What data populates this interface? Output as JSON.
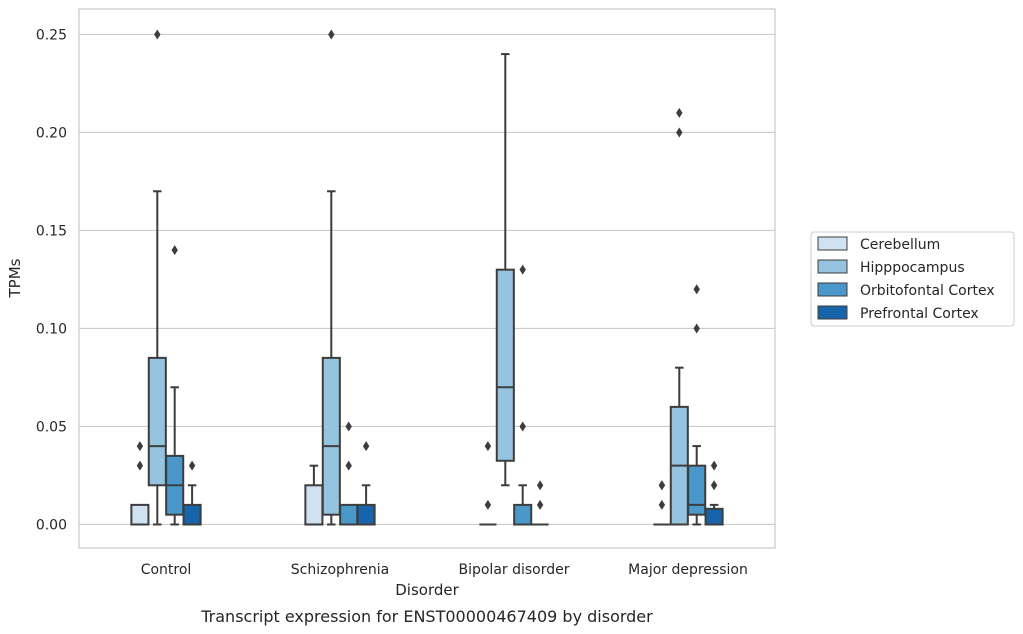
{
  "chart_data": {
    "type": "box",
    "title": "",
    "caption": "Transcript expression for ENST00000467409 by disorder",
    "xlabel": "Disorder",
    "ylabel": "TPMs",
    "ylim": [
      -0.012,
      0.263
    ],
    "yticks": [
      "0.00",
      "0.05",
      "0.10",
      "0.15",
      "0.20",
      "0.25"
    ],
    "ytick_values": [
      0,
      0.05,
      0.1,
      0.15,
      0.2,
      0.25
    ],
    "grid": true,
    "legend_position": "right",
    "categories": [
      "Control",
      "Schizophrenia",
      "Bipolar disorder",
      "Major depression"
    ],
    "series": [
      {
        "name": "Cerebellum",
        "color": "#d0e1f2",
        "boxes": [
          {
            "min": 0,
            "q1": 0,
            "median": 0,
            "q3": 0.01,
            "max": 0.01,
            "outliers": [
              0.04,
              0.03
            ]
          },
          {
            "min": 0,
            "q1": 0,
            "median": 0,
            "q3": 0.02,
            "max": 0.03,
            "outliers": []
          },
          {
            "min": 0,
            "q1": 0,
            "median": 0,
            "q3": 0,
            "max": 0,
            "outliers": [
              0.04,
              0.01
            ]
          },
          {
            "min": 0,
            "q1": 0,
            "median": 0,
            "q3": 0,
            "max": 0,
            "outliers": [
              0.02,
              0.02,
              0.01
            ]
          }
        ]
      },
      {
        "name": "Hipppocampus",
        "color": "#94c4df",
        "boxes": [
          {
            "min": 0,
            "q1": 0.02,
            "median": 0.04,
            "q3": 0.085,
            "max": 0.17,
            "outliers": [
              0.25
            ]
          },
          {
            "min": 0,
            "q1": 0.005,
            "median": 0.04,
            "q3": 0.085,
            "max": 0.17,
            "outliers": [
              0.25
            ]
          },
          {
            "min": 0.02,
            "q1": 0.0325,
            "median": 0.07,
            "q3": 0.13,
            "max": 0.24,
            "outliers": []
          },
          {
            "min": 0,
            "q1": 0,
            "median": 0.03,
            "q3": 0.06,
            "max": 0.08,
            "outliers": [
              0.21,
              0.2
            ]
          }
        ]
      },
      {
        "name": "Orbitofontal Cortex",
        "color": "#4a98c9",
        "boxes": [
          {
            "min": 0,
            "q1": 0.005,
            "median": 0.02,
            "q3": 0.035,
            "max": 0.07,
            "outliers": [
              0.14
            ]
          },
          {
            "min": 0,
            "q1": 0,
            "median": 0,
            "q3": 0.01,
            "max": 0.01,
            "outliers": [
              0.05,
              0.03
            ]
          },
          {
            "min": 0,
            "q1": 0,
            "median": 0,
            "q3": 0.01,
            "max": 0.02,
            "outliers": [
              0.13,
              0.05
            ]
          },
          {
            "min": 0,
            "q1": 0.005,
            "median": 0.01,
            "q3": 0.03,
            "max": 0.04,
            "outliers": [
              0.12,
              0.1
            ]
          }
        ]
      },
      {
        "name": "Prefrontal Cortex",
        "color": "#1764ab",
        "boxes": [
          {
            "min": 0,
            "q1": 0,
            "median": 0,
            "q3": 0.01,
            "max": 0.02,
            "outliers": [
              0.03
            ]
          },
          {
            "min": 0,
            "q1": 0,
            "median": 0,
            "q3": 0.01,
            "max": 0.02,
            "outliers": [
              0.04
            ]
          },
          {
            "min": 0,
            "q1": 0,
            "median": 0,
            "q3": 0,
            "max": 0,
            "outliers": [
              0.02,
              0.01
            ]
          },
          {
            "min": 0,
            "q1": 0,
            "median": 0,
            "q3": 0.008,
            "max": 0.01,
            "outliers": [
              0.03,
              0.02
            ]
          }
        ]
      }
    ]
  }
}
